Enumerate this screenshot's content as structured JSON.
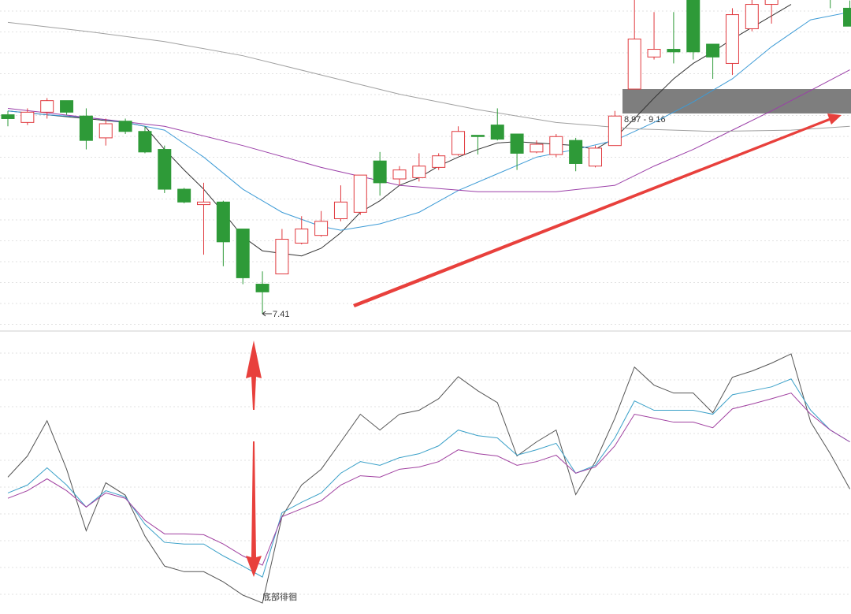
{
  "chart_data": [
    {
      "type": "candlestick",
      "ylim": [
        7.275,
        9.854
      ],
      "up_color": "#e0393e",
      "down_color": "#2e9a38",
      "open": [
        8.96,
        8.9,
        8.98,
        9.07,
        8.95,
        8.78,
        8.91,
        8.83,
        8.69,
        8.38,
        8.26,
        8.28,
        8.07,
        7.64,
        7.72,
        7.96,
        8.02,
        8.15,
        8.2,
        8.6,
        8.46,
        8.47,
        8.55,
        8.65,
        8.8,
        8.88,
        8.81,
        8.67,
        8.65,
        8.76,
        8.56,
        8.72,
        9.16,
        9.41,
        9.47,
        9.9,
        9.51,
        9.36,
        9.63,
        9.82,
        9.92,
        10.02,
        9.95,
        9.79
      ],
      "high": [
        8.99,
        9.01,
        9.09,
        9.07,
        9.01,
        8.93,
        8.93,
        8.87,
        8.72,
        8.39,
        8.43,
        8.29,
        8.07,
        7.74,
        8.07,
        8.17,
        8.21,
        8.41,
        8.49,
        8.67,
        8.56,
        8.66,
        8.66,
        8.87,
        8.8,
        9.01,
        8.81,
        8.76,
        8.81,
        8.78,
        8.72,
        8.99,
        9.95,
        9.76,
        9.76,
        9.95,
        9.51,
        9.79,
        9.9,
        9.95,
        10.05,
        10.05,
        9.98,
        9.85
      ],
      "low": [
        8.87,
        8.88,
        8.93,
        8.96,
        8.69,
        8.72,
        8.81,
        8.66,
        8.35,
        8.27,
        7.87,
        7.78,
        7.64,
        7.41,
        7.72,
        7.95,
        8.01,
        8.13,
        8.18,
        8.33,
        8.41,
        8.44,
        8.53,
        8.64,
        8.65,
        8.76,
        8.53,
        8.66,
        8.63,
        8.52,
        8.55,
        8.72,
        9.16,
        9.39,
        9.36,
        9.39,
        9.24,
        9.27,
        9.61,
        9.67,
        9.88,
        9.9,
        9.79,
        9.65
      ],
      "close": [
        8.93,
        8.98,
        9.07,
        8.98,
        8.76,
        8.89,
        8.83,
        8.67,
        8.38,
        8.28,
        8.28,
        7.97,
        7.69,
        7.58,
        7.99,
        8.07,
        8.13,
        8.28,
        8.49,
        8.43,
        8.53,
        8.56,
        8.64,
        8.83,
        8.79,
        8.77,
        8.66,
        8.73,
        8.79,
        8.58,
        8.7,
        8.95,
        9.55,
        9.47,
        9.45,
        9.45,
        9.41,
        9.74,
        9.82,
        9.9,
        10.0,
        9.95,
        9.88,
        9.65
      ],
      "moving_averages": [
        {
          "color": "#333333",
          "x": [
            0,
            2,
            4,
            6,
            7,
            8,
            9,
            10,
            11,
            12,
            13,
            14,
            15,
            16,
            17,
            18,
            19,
            20,
            21,
            22,
            23,
            24,
            25,
            26,
            27,
            28,
            29,
            30,
            31,
            32,
            33,
            34,
            35,
            36,
            37,
            38,
            39,
            40
          ],
          "values": [
            8.99,
            8.96,
            8.93,
            8.9,
            8.87,
            8.69,
            8.53,
            8.38,
            8.2,
            8.01,
            7.9,
            7.88,
            7.86,
            7.92,
            8.04,
            8.2,
            8.29,
            8.41,
            8.47,
            8.56,
            8.63,
            8.69,
            8.74,
            8.75,
            8.74,
            8.73,
            8.72,
            8.69,
            8.78,
            8.93,
            9.09,
            9.24,
            9.36,
            9.45,
            9.55,
            9.64,
            9.73,
            9.82
          ]
        },
        {
          "color": "#3d9bd6",
          "x": [
            0,
            2,
            4,
            6,
            8,
            10,
            12,
            14,
            16,
            17,
            19,
            21,
            23,
            25,
            27,
            29,
            31,
            33,
            35,
            37,
            39,
            41,
            43
          ],
          "values": [
            8.99,
            8.96,
            8.94,
            8.9,
            8.84,
            8.63,
            8.38,
            8.2,
            8.09,
            8.06,
            8.11,
            8.2,
            8.37,
            8.5,
            8.63,
            8.69,
            8.76,
            8.9,
            9.06,
            9.24,
            9.49,
            9.7,
            9.76
          ]
        },
        {
          "color": "#9b3fa8",
          "x": [
            0,
            4,
            8,
            12,
            16,
            20,
            24,
            28,
            31,
            33,
            35,
            37,
            39,
            41,
            43
          ],
          "values": [
            9.01,
            8.94,
            8.87,
            8.72,
            8.55,
            8.41,
            8.36,
            8.36,
            8.41,
            8.56,
            8.69,
            8.84,
            8.99,
            9.15,
            9.31
          ]
        },
        {
          "color": "#a0a0a0",
          "x": [
            0,
            4,
            8,
            12,
            16,
            20,
            24,
            28,
            32,
            36,
            40,
            43
          ],
          "values": [
            9.68,
            9.61,
            9.53,
            9.42,
            9.27,
            9.12,
            9.0,
            8.9,
            8.85,
            8.83,
            8.84,
            8.87
          ]
        }
      ],
      "band": {
        "low": 8.97,
        "high": 9.16,
        "label": "8.97 - 9.16"
      },
      "low_label": 7.41
    },
    {
      "type": "line",
      "ylim": [
        0,
        100
      ],
      "annotation": "底部徘徊",
      "series": [
        {
          "color": "#555555",
          "values": [
            48.5,
            56.0,
            68.5,
            51.3,
            29.5,
            46.5,
            42.1,
            27.6,
            17.0,
            15.0,
            15.0,
            11.4,
            6.7,
            3.9,
            34.5,
            45.7,
            51.3,
            61.0,
            70.8,
            65.2,
            70.8,
            72.2,
            76.3,
            84.1,
            79.1,
            74.9,
            56.0,
            61.0,
            65.2,
            42.3,
            54.0,
            69.4,
            87.5,
            81.1,
            78.3,
            78.3,
            71.3,
            83.9,
            86.1,
            88.9,
            92.2,
            68.0,
            56.8,
            44.3
          ]
        },
        {
          "color": "#3aa0c8",
          "values": [
            42.9,
            45.7,
            51.8,
            45.7,
            37.9,
            43.7,
            41.5,
            31.8,
            25.4,
            24.8,
            24.8,
            20.6,
            17.0,
            13.1,
            35.9,
            39.6,
            42.9,
            49.9,
            54.0,
            52.7,
            55.4,
            56.8,
            59.6,
            65.2,
            63.2,
            62.4,
            56.3,
            58.2,
            60.5,
            49.9,
            52.7,
            62.4,
            75.5,
            72.2,
            72.2,
            72.2,
            70.8,
            77.7,
            79.1,
            80.5,
            83.3,
            72.2,
            65.2,
            61.0
          ]
        },
        {
          "color": "#a040a0",
          "values": [
            41.0,
            43.7,
            47.9,
            43.7,
            37.9,
            42.9,
            41.0,
            33.2,
            28.4,
            28.4,
            28.1,
            24.8,
            20.6,
            17.3,
            34.5,
            37.3,
            40.1,
            45.7,
            49.0,
            48.5,
            51.3,
            52.1,
            54.0,
            58.2,
            56.8,
            56.0,
            52.7,
            54.0,
            56.3,
            49.9,
            52.1,
            59.6,
            70.8,
            69.4,
            68.0,
            68.0,
            66.0,
            72.7,
            74.4,
            76.3,
            78.3,
            70.8,
            65.2,
            61.0
          ]
        }
      ]
    }
  ]
}
